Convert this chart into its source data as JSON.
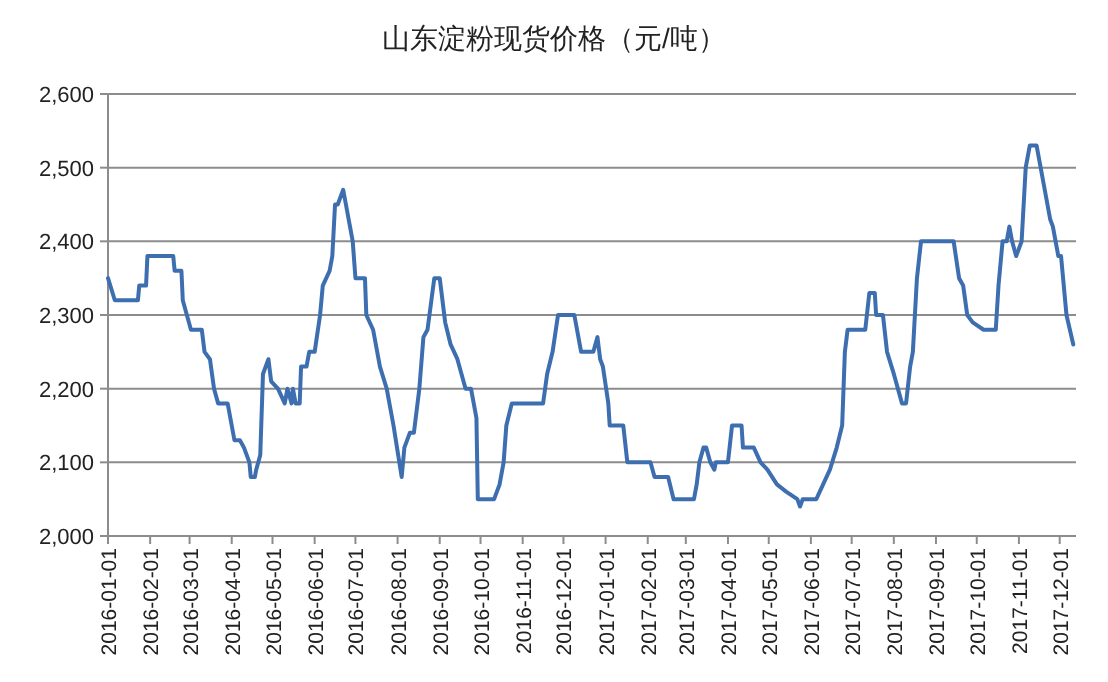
{
  "chart_data": {
    "type": "line",
    "title": "山东淀粉现货价格（元/吨）",
    "grid": "y",
    "marker": "none",
    "line_style": "solid",
    "xlim": [
      "2016-01-01",
      "2017-12-13"
    ],
    "xticks": [
      "2016-01-01",
      "2016-02-01",
      "2016-03-01",
      "2016-04-01",
      "2016-05-01",
      "2016-06-01",
      "2016-07-01",
      "2016-08-01",
      "2016-09-01",
      "2016-10-01",
      "2016-11-01",
      "2016-12-01",
      "2017-01-01",
      "2017-02-01",
      "2017-03-01",
      "2017-04-01",
      "2017-05-01",
      "2017-06-01",
      "2017-07-01",
      "2017-08-01",
      "2017-09-01",
      "2017-10-01",
      "2017-11-01",
      "2017-12-01"
    ],
    "ylim": [
      2000,
      2600
    ],
    "yticks": [
      {
        "value": 2000,
        "label": "2,000"
      },
      {
        "value": 2100,
        "label": "2,100"
      },
      {
        "value": 2200,
        "label": "2,200"
      },
      {
        "value": 2300,
        "label": "2,300"
      },
      {
        "value": 2400,
        "label": "2,400"
      },
      {
        "value": 2500,
        "label": "2,500"
      },
      {
        "value": 2600,
        "label": "2,600"
      }
    ],
    "series": [
      {
        "color": "#3d6eb0",
        "x": [
          "2016-01-01",
          "2016-01-06",
          "2016-01-23",
          "2016-01-24",
          "2016-01-29",
          "2016-01-30",
          "2016-02-18",
          "2016-02-19",
          "2016-02-24",
          "2016-02-25",
          "2016-02-28",
          "2016-03-02",
          "2016-03-10",
          "2016-03-12",
          "2016-03-16",
          "2016-03-19",
          "2016-03-22",
          "2016-03-29",
          "2016-04-01",
          "2016-04-03",
          "2016-04-07",
          "2016-04-10",
          "2016-04-14",
          "2016-04-15",
          "2016-04-18",
          "2016-04-19",
          "2016-04-22",
          "2016-04-24",
          "2016-04-28",
          "2016-04-30",
          "2016-05-05",
          "2016-05-10",
          "2016-05-12",
          "2016-05-15",
          "2016-05-16",
          "2016-05-18",
          "2016-05-21",
          "2016-05-22",
          "2016-05-26",
          "2016-05-28",
          "2016-06-01",
          "2016-06-05",
          "2016-06-07",
          "2016-06-12",
          "2016-06-14",
          "2016-06-16",
          "2016-06-18",
          "2016-06-22",
          "2016-06-24",
          "2016-06-29",
          "2016-07-01",
          "2016-07-08",
          "2016-07-09",
          "2016-07-14",
          "2016-07-19",
          "2016-07-24",
          "2016-07-29",
          "2016-08-04",
          "2016-08-06",
          "2016-08-10",
          "2016-08-13",
          "2016-08-17",
          "2016-08-20",
          "2016-08-23",
          "2016-08-28",
          "2016-09-01",
          "2016-09-05",
          "2016-09-09",
          "2016-09-14",
          "2016-09-20",
          "2016-09-24",
          "2016-09-28",
          "2016-09-29",
          "2016-10-11",
          "2016-10-15",
          "2016-10-18",
          "2016-10-20",
          "2016-10-24",
          "2016-11-16",
          "2016-11-19",
          "2016-11-23",
          "2016-11-27",
          "2016-12-09",
          "2016-12-12",
          "2016-12-14",
          "2016-12-23",
          "2016-12-26",
          "2016-12-28",
          "2016-12-30",
          "2017-01-03",
          "2017-01-04",
          "2017-01-14",
          "2017-01-17",
          "2017-02-03",
          "2017-02-06",
          "2017-02-16",
          "2017-02-20",
          "2017-03-07",
          "2017-03-09",
          "2017-03-11",
          "2017-03-14",
          "2017-03-16",
          "2017-03-19",
          "2017-03-22",
          "2017-03-23",
          "2017-04-01",
          "2017-04-04",
          "2017-04-11",
          "2017-04-12",
          "2017-04-20",
          "2017-04-25",
          "2017-04-30",
          "2017-05-07",
          "2017-05-14",
          "2017-05-22",
          "2017-05-24",
          "2017-05-26",
          "2017-06-05",
          "2017-06-10",
          "2017-06-15",
          "2017-06-20",
          "2017-06-24",
          "2017-06-26",
          "2017-06-28",
          "2017-07-11",
          "2017-07-14",
          "2017-07-18",
          "2017-07-19",
          "2017-07-24",
          "2017-07-27",
          "2017-08-01",
          "2017-08-07",
          "2017-08-10",
          "2017-08-13",
          "2017-08-15",
          "2017-08-18",
          "2017-08-21",
          "2017-09-14",
          "2017-09-18",
          "2017-09-21",
          "2017-09-24",
          "2017-09-28",
          "2017-10-06",
          "2017-10-15",
          "2017-10-17",
          "2017-10-20",
          "2017-10-23",
          "2017-10-25",
          "2017-10-27",
          "2017-10-30",
          "2017-11-03",
          "2017-11-06",
          "2017-11-09",
          "2017-11-14",
          "2017-11-17",
          "2017-11-20",
          "2017-11-24",
          "2017-11-26",
          "2017-11-30",
          "2017-12-02",
          "2017-12-06",
          "2017-12-11"
        ],
        "values": [
          2350,
          2320,
          2320,
          2340,
          2340,
          2380,
          2380,
          2360,
          2360,
          2320,
          2300,
          2280,
          2280,
          2250,
          2240,
          2200,
          2180,
          2180,
          2150,
          2130,
          2130,
          2120,
          2100,
          2080,
          2080,
          2090,
          2110,
          2220,
          2240,
          2210,
          2200,
          2180,
          2200,
          2180,
          2200,
          2180,
          2180,
          2230,
          2230,
          2250,
          2250,
          2300,
          2340,
          2360,
          2380,
          2450,
          2450,
          2470,
          2450,
          2400,
          2350,
          2350,
          2300,
          2280,
          2230,
          2200,
          2150,
          2080,
          2120,
          2140,
          2140,
          2200,
          2270,
          2280,
          2350,
          2350,
          2290,
          2260,
          2240,
          2200,
          2200,
          2160,
          2050,
          2050,
          2070,
          2100,
          2150,
          2180,
          2180,
          2220,
          2250,
          2300,
          2300,
          2270,
          2250,
          2250,
          2270,
          2240,
          2230,
          2180,
          2150,
          2150,
          2100,
          2100,
          2080,
          2080,
          2050,
          2050,
          2070,
          2100,
          2120,
          2120,
          2100,
          2090,
          2100,
          2100,
          2150,
          2150,
          2120,
          2120,
          2100,
          2090,
          2070,
          2060,
          2050,
          2040,
          2050,
          2050,
          2070,
          2090,
          2120,
          2150,
          2250,
          2280,
          2280,
          2330,
          2330,
          2300,
          2300,
          2250,
          2220,
          2180,
          2180,
          2230,
          2250,
          2350,
          2400,
          2400,
          2350,
          2340,
          2300,
          2290,
          2280,
          2280,
          2340,
          2400,
          2400,
          2420,
          2400,
          2380,
          2400,
          2500,
          2530,
          2530,
          2500,
          2470,
          2430,
          2420,
          2380,
          2380,
          2300,
          2260
        ]
      }
    ]
  }
}
